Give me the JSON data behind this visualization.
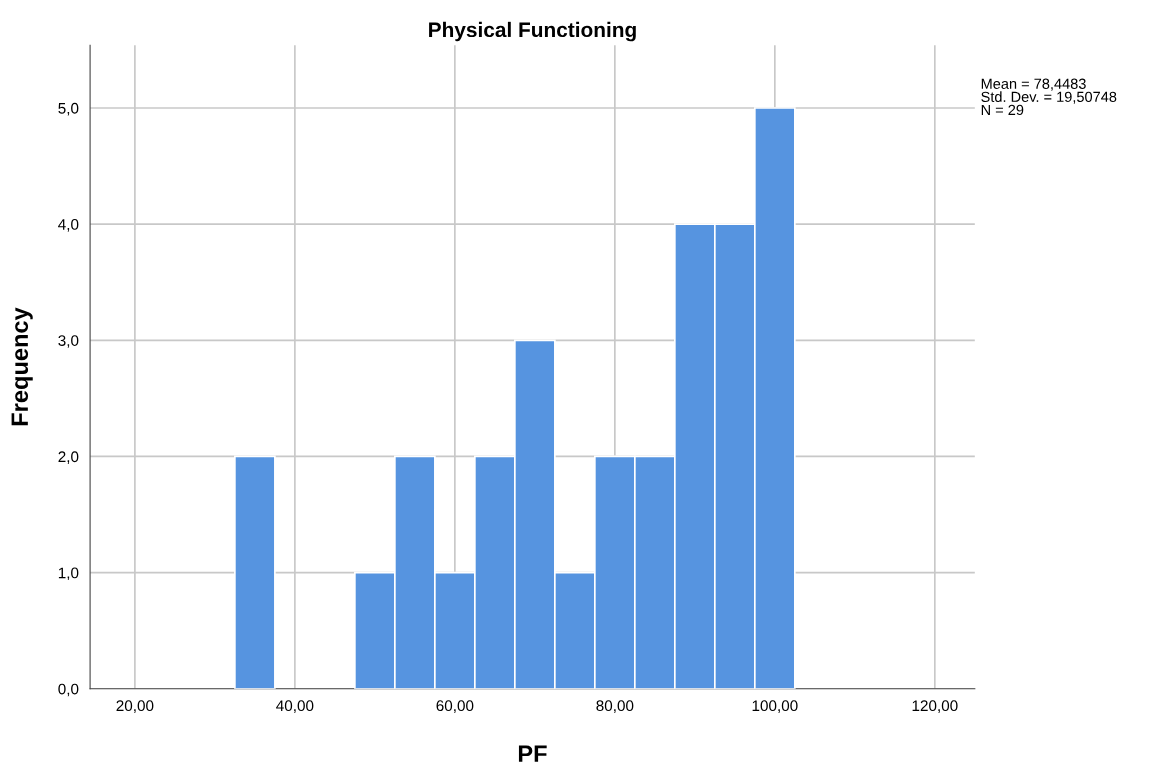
{
  "chart_data": {
    "type": "histogram",
    "title": "Physical Functioning",
    "xlabel": "PF",
    "ylabel": "Frequency",
    "bins": [
      32.5,
      37.5,
      42.5,
      47.5,
      52.5,
      57.5,
      62.5,
      67.5,
      72.5,
      77.5,
      82.5,
      87.5,
      92.5,
      97.5,
      102.5
    ],
    "values": [
      2,
      0,
      0,
      1,
      2,
      1,
      2,
      3,
      1,
      2,
      2,
      4,
      4,
      5
    ],
    "color": "#5694e0",
    "xlim": [
      14.4,
      125
    ],
    "ylim": [
      0,
      5.54
    ],
    "xticks": [
      {
        "value": 20,
        "label": "20,00"
      },
      {
        "value": 40,
        "label": "40,00"
      },
      {
        "value": 60,
        "label": "60,00"
      },
      {
        "value": 80,
        "label": "80,00"
      },
      {
        "value": 100,
        "label": "100,00"
      },
      {
        "value": 120,
        "label": "120,00"
      }
    ],
    "yticks": [
      {
        "value": 0,
        "label": "0,0"
      },
      {
        "value": 1,
        "label": "1,0"
      },
      {
        "value": 2,
        "label": "2,0"
      },
      {
        "value": 3,
        "label": "3,0"
      },
      {
        "value": 4,
        "label": "4,0"
      },
      {
        "value": 5,
        "label": "5,0"
      }
    ],
    "grid": true,
    "legend": false,
    "annotations": [
      "Mean = 78,4483\nStd. Dev. = 19,50748\nN = 29"
    ]
  }
}
